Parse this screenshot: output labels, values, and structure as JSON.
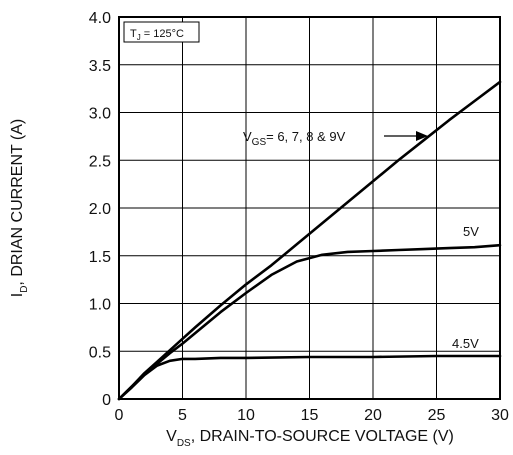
{
  "chart_data": {
    "type": "line",
    "xlim": [
      0,
      30
    ],
    "ylim": [
      0,
      4.0
    ],
    "x_ticks": [
      "0",
      "5",
      "10",
      "15",
      "20",
      "25",
      "30"
    ],
    "y_ticks": [
      "0",
      "0.5",
      "1.0",
      "1.5",
      "2.0",
      "2.5",
      "3.0",
      "3.5",
      "4.0"
    ],
    "grid": true,
    "xlabel": {
      "main": "V",
      "sub": "DS",
      "rest": ", DRAIN-TO-SOURCE VOLTAGE (V)"
    },
    "ylabel": {
      "main": "I",
      "sub": "D",
      "rest": ", DRIAN CURRENT (A)"
    },
    "condition": {
      "main": "T",
      "sub": "J",
      "rest": " = 125°C"
    },
    "series": [
      {
        "name": "VGS = 6, 7, 8 & 9V",
        "label": {
          "main": "V",
          "sub": "GS",
          "rest": "= 6, 7, 8 & 9V"
        },
        "x": [
          0,
          1,
          2,
          3,
          4,
          5,
          6,
          8,
          10,
          12,
          14,
          16,
          18,
          20,
          22,
          24,
          26,
          28,
          30
        ],
        "y": [
          0,
          0.13,
          0.27,
          0.39,
          0.51,
          0.63,
          0.75,
          0.98,
          1.2,
          1.4,
          1.62,
          1.84,
          2.06,
          2.28,
          2.5,
          2.71,
          2.92,
          3.12,
          3.32
        ]
      },
      {
        "name": "5V",
        "label": {
          "main": "5V",
          "sub": "",
          "rest": ""
        },
        "x": [
          0,
          1,
          2,
          3,
          4,
          5,
          6,
          8,
          10,
          12,
          14,
          16,
          18,
          20,
          22,
          24,
          26,
          28,
          30
        ],
        "y": [
          0,
          0.13,
          0.26,
          0.37,
          0.48,
          0.58,
          0.69,
          0.91,
          1.11,
          1.3,
          1.44,
          1.51,
          1.54,
          1.55,
          1.56,
          1.57,
          1.58,
          1.59,
          1.61
        ]
      },
      {
        "name": "4.5V",
        "label": {
          "main": "4.5V",
          "sub": "",
          "rest": ""
        },
        "x": [
          0,
          1,
          2,
          3,
          4,
          5,
          6,
          8,
          10,
          15,
          20,
          25,
          30
        ],
        "y": [
          0,
          0.12,
          0.25,
          0.35,
          0.4,
          0.42,
          0.42,
          0.43,
          0.43,
          0.44,
          0.44,
          0.45,
          0.45
        ]
      }
    ]
  }
}
